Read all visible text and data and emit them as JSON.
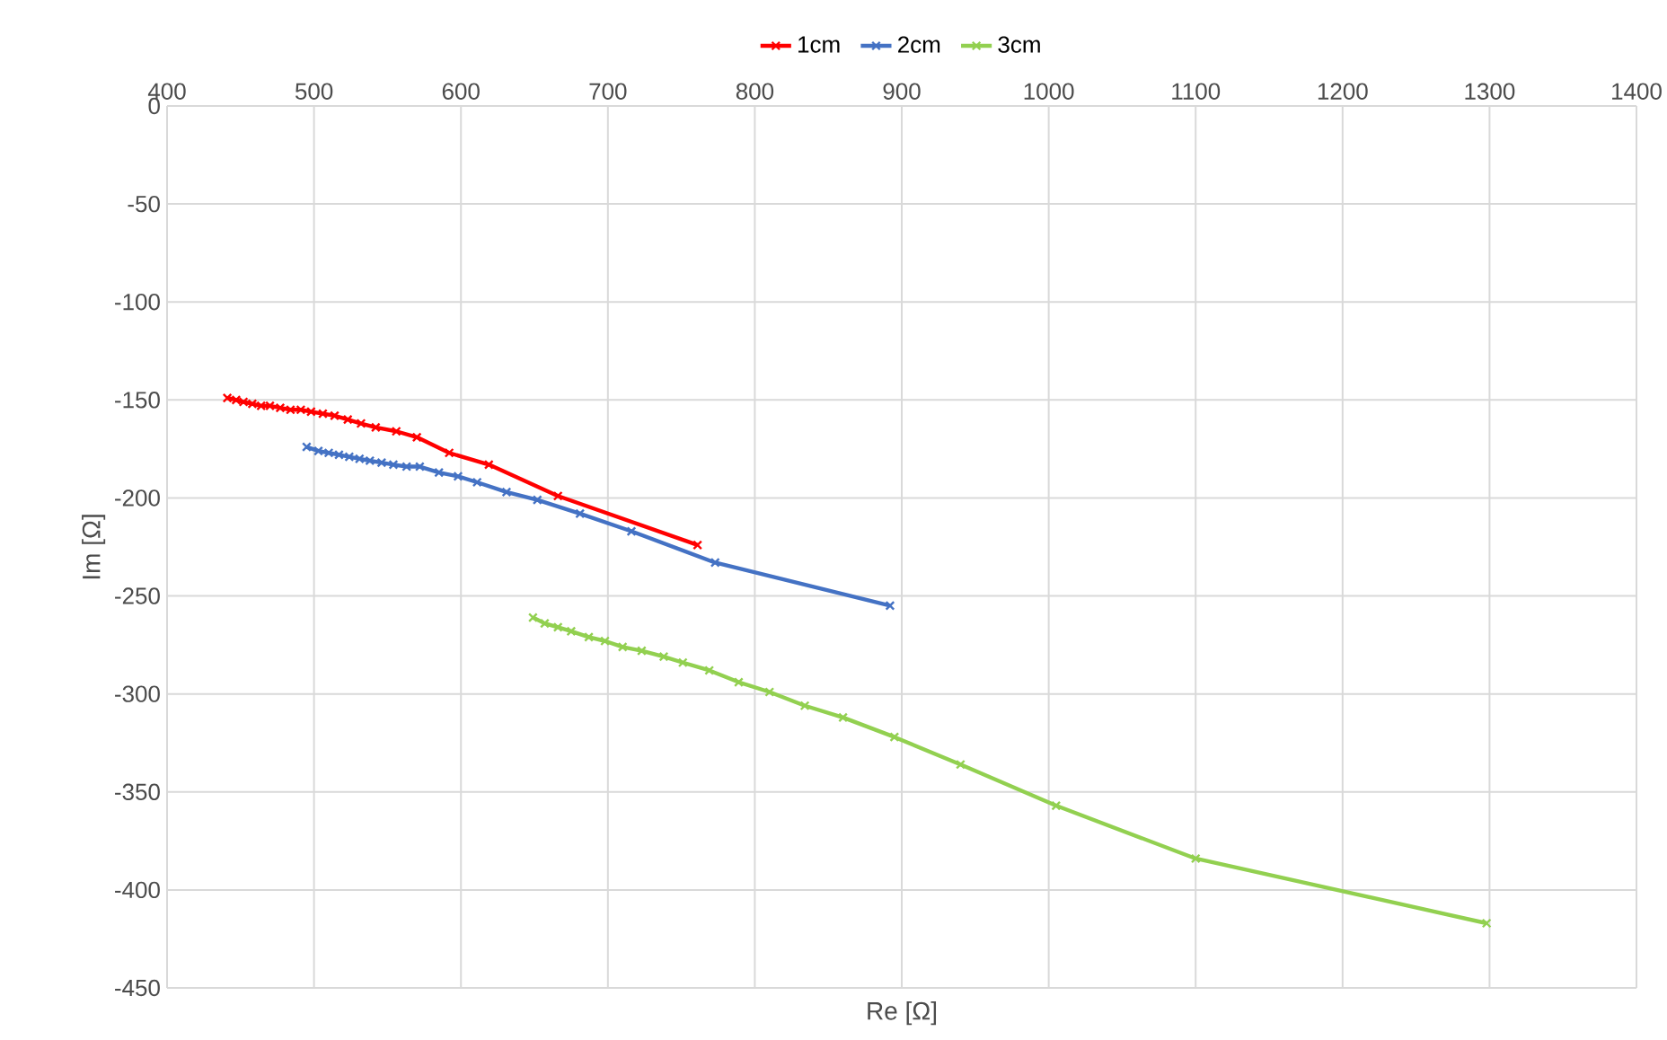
{
  "chart_data": {
    "type": "line",
    "xlabel": "Re [Ω]",
    "ylabel": "Im [Ω]",
    "xlim": [
      400,
      1400
    ],
    "ylim": [
      -450,
      0
    ],
    "xticks": [
      400,
      500,
      600,
      700,
      800,
      900,
      1000,
      1100,
      1200,
      1300,
      1400
    ],
    "yticks": [
      -450,
      -400,
      -350,
      -300,
      -250,
      -200,
      -150,
      -100,
      -50,
      0
    ],
    "grid": true,
    "legend": "top",
    "marker": "cross",
    "line_style": "solid",
    "series": [
      {
        "name": "1cm",
        "color": "#ff0000",
        "x": [
          441,
          447,
          452,
          458,
          464,
          470,
          477,
          484,
          491,
          498,
          506,
          514,
          523,
          532,
          542,
          556,
          570,
          592,
          619,
          666,
          761
        ],
        "values": [
          -149,
          -150,
          -151,
          -152,
          -153,
          -153,
          -154,
          -155,
          -155,
          -156,
          -157,
          -158,
          -160,
          -162,
          -164,
          -166,
          -169,
          -177,
          -183,
          -199,
          -224
        ]
      },
      {
        "name": "2cm",
        "color": "#4472c4",
        "x": [
          495,
          503,
          510,
          517,
          524,
          531,
          538,
          546,
          554,
          563,
          572,
          585,
          598,
          611,
          631,
          652,
          681,
          716,
          773,
          892
        ],
        "values": [
          -174,
          -176,
          -177,
          -178,
          -179,
          -180,
          -181,
          -182,
          -183,
          -184,
          -184,
          -187,
          -189,
          -192,
          -197,
          -201,
          -208,
          -217,
          -233,
          -255
        ]
      },
      {
        "name": "3cm",
        "color": "#92d050",
        "x": [
          649,
          657,
          666,
          675,
          687,
          698,
          710,
          723,
          738,
          751,
          769,
          789,
          810,
          834,
          860,
          895,
          940,
          1005,
          1100,
          1298
        ],
        "values": [
          -261,
          -264,
          -266,
          -268,
          -271,
          -273,
          -276,
          -278,
          -281,
          -284,
          -288,
          -294,
          -299,
          -306,
          -312,
          -322,
          -336,
          -357,
          -384,
          -417
        ]
      }
    ]
  }
}
